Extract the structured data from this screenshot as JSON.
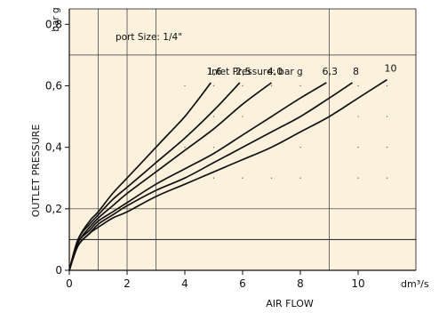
{
  "chart_data": {
    "type": "line",
    "xlabel": "AIR FLOW",
    "ylabel": "OUTLET PRESSURE",
    "y_unit": "bar g",
    "x_unit": "dm³/s",
    "xlim": [
      0,
      12
    ],
    "ylim": [
      0,
      0.85
    ],
    "x_ticks": [
      "0",
      "2",
      "4",
      "6",
      "8",
      "10"
    ],
    "y_ticks": [
      "0",
      "0,2",
      "0,4",
      "0,6",
      "0,8"
    ],
    "annotation_port": "port Size: 1/4\"",
    "annotation_inlet": "Inlet Pressure: bar g",
    "background": "#fbf1dc",
    "grid": true,
    "series": [
      {
        "name": "1,6",
        "x": [
          0,
          0.3,
          0.7,
          1.0,
          1.5,
          2.0,
          2.5,
          3.0,
          3.5,
          4.0,
          4.5,
          4.9
        ],
        "y": [
          0,
          0.1,
          0.16,
          0.19,
          0.25,
          0.3,
          0.35,
          0.4,
          0.45,
          0.5,
          0.56,
          0.61
        ]
      },
      {
        "name": "2,5",
        "x": [
          0,
          0.3,
          0.7,
          1.0,
          1.5,
          2.0,
          2.5,
          3.0,
          4.0,
          5.0,
          5.9
        ],
        "y": [
          0,
          0.1,
          0.15,
          0.18,
          0.23,
          0.27,
          0.31,
          0.35,
          0.43,
          0.52,
          0.61
        ]
      },
      {
        "name": "4,0",
        "x": [
          0,
          0.3,
          0.7,
          1.0,
          1.5,
          2.0,
          3.0,
          4.0,
          5.0,
          6.0,
          7.0
        ],
        "y": [
          0,
          0.09,
          0.14,
          0.17,
          0.21,
          0.25,
          0.32,
          0.39,
          0.46,
          0.54,
          0.61
        ]
      },
      {
        "name": "6,3",
        "x": [
          0,
          0.3,
          0.7,
          1.0,
          1.5,
          2.0,
          3.0,
          4.0,
          5.0,
          6.0,
          7.0,
          8.0,
          8.9
        ],
        "y": [
          0,
          0.09,
          0.13,
          0.16,
          0.19,
          0.22,
          0.28,
          0.33,
          0.38,
          0.44,
          0.5,
          0.56,
          0.61
        ]
      },
      {
        "name": "8",
        "x": [
          0,
          0.3,
          0.7,
          1.0,
          1.5,
          2.0,
          3.0,
          4.0,
          5.0,
          6.0,
          7.0,
          8.0,
          9.0,
          9.8
        ],
        "y": [
          0,
          0.08,
          0.12,
          0.15,
          0.18,
          0.21,
          0.26,
          0.3,
          0.35,
          0.4,
          0.45,
          0.5,
          0.56,
          0.61
        ]
      },
      {
        "name": "10",
        "x": [
          0,
          0.3,
          0.7,
          1.0,
          1.5,
          2.0,
          3.0,
          4.0,
          5.0,
          6.0,
          7.0,
          8.0,
          9.0,
          10.0,
          11.0
        ],
        "y": [
          0,
          0.08,
          0.12,
          0.14,
          0.17,
          0.19,
          0.24,
          0.28,
          0.32,
          0.36,
          0.4,
          0.45,
          0.5,
          0.56,
          0.62
        ]
      }
    ]
  }
}
